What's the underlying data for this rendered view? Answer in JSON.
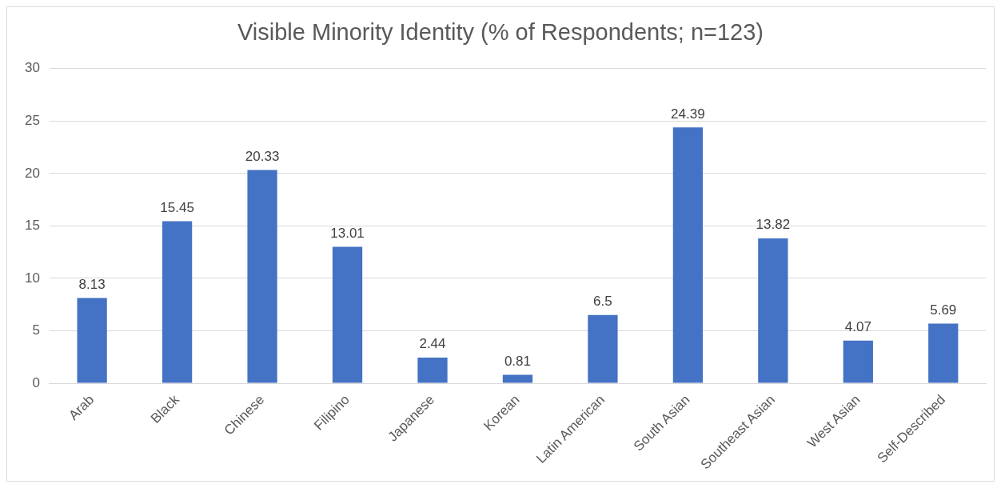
{
  "chart_data": {
    "type": "bar",
    "title": "Visible Minority Identity (% of Respondents; n=123)",
    "categories": [
      "Arab",
      "Black",
      "Chinese",
      "Filipino",
      "Japanese",
      "Korean",
      "Latin American",
      "South Asian",
      "Southeast Asian",
      "West Asian",
      "Self-Described"
    ],
    "values": [
      8.13,
      15.45,
      20.33,
      13.01,
      2.44,
      0.81,
      6.5,
      24.39,
      13.82,
      4.07,
      5.69
    ],
    "color": "#4472c4",
    "ylim": [
      0,
      30
    ],
    "yticks": [
      0,
      5,
      10,
      15,
      20,
      25,
      30
    ],
    "grid": "y",
    "data_labels": true,
    "legend": false
  }
}
